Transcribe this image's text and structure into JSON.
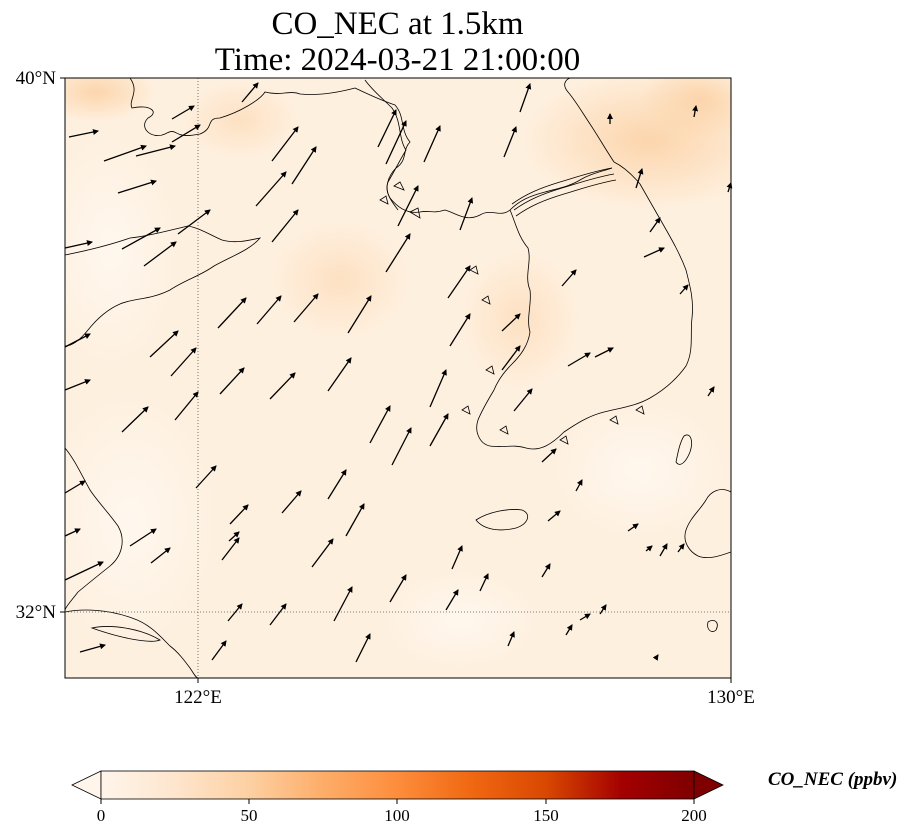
{
  "title": {
    "line1": "CO_NEC at 1.5km",
    "line2": "Time: 2024-03-21 21:00:00"
  },
  "axes": {
    "lon_ticks": [
      "122°E",
      "130°E"
    ],
    "lat_ticks": [
      "40°N",
      "32°N"
    ]
  },
  "colorbar": {
    "label": "CO_NEC (ppbv)",
    "ticks": [
      "0",
      "50",
      "100",
      "150",
      "200"
    ],
    "colormap": [
      "#fff5eb",
      "#fee6ce",
      "#fdd0a2",
      "#fdae6b",
      "#fd8d3c",
      "#f16913",
      "#d94801",
      "#a30000",
      "#7f0000"
    ],
    "extend": "both"
  },
  "field": {
    "background_color": "#fef0df",
    "note_colors": [
      "#fde4c6",
      "#fcd6ad"
    ]
  }
}
